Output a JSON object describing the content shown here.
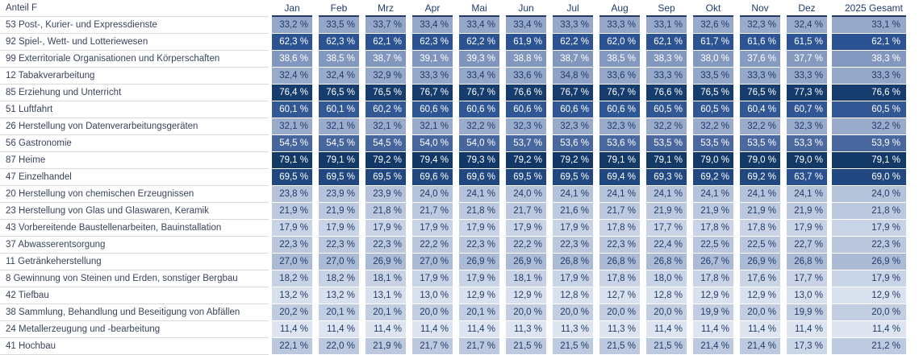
{
  "colors": {
    "header_text": "#1F3C6D",
    "header_underline": "#1F3864",
    "label_text": "#39445C",
    "row_separator": "#DADADA",
    "cell_text_dark": "#223C6B",
    "cell_text_light": "#FFFFFF",
    "white_text_threshold": 36.5,
    "scale_anchors": [
      [
        11,
        "#DFE6F1"
      ],
      [
        33,
        "#97A9CA"
      ],
      [
        54,
        "#49679F"
      ],
      [
        62,
        "#2B5393"
      ],
      [
        79.5,
        "#123866"
      ]
    ]
  },
  "chart_data": {
    "type": "heatmap",
    "title": "Anteil F",
    "corner_label": "Anteil F",
    "unit": "%",
    "value_format": "one decimal, German comma, suffix ' %'",
    "legend_position": "none",
    "color_scale": "light grayish blue (low) to dark navy (high)",
    "columns": [
      "Jan",
      "Feb",
      "Mrz",
      "Apr",
      "Mai",
      "Jun",
      "Jul",
      "Aug",
      "Sep",
      "Okt",
      "Nov",
      "Dez"
    ],
    "total_column": "2025 Gesamt",
    "rows": [
      {
        "label": "53 Post-, Kurier- und Expressdienste",
        "values": [
          33.2,
          33.5,
          33.7,
          33.4,
          33.4,
          33.4,
          33.3,
          33.3,
          33.1,
          32.6,
          32.3,
          32.4
        ],
        "total": 33.1
      },
      {
        "label": "92 Spiel-, Wett- und Lotteriewesen",
        "values": [
          62.3,
          62.3,
          62.1,
          62.3,
          62.2,
          61.9,
          62.2,
          62.0,
          62.1,
          61.7,
          61.6,
          61.5
        ],
        "total": 62.1
      },
      {
        "label": "99 Exterritoriale Organisationen und Körperschaften",
        "values": [
          38.6,
          38.5,
          38.7,
          39.1,
          39.3,
          38.8,
          38.7,
          38.5,
          38.3,
          38.0,
          37.6,
          37.7
        ],
        "total": 38.3
      },
      {
        "label": "12 Tabakverarbeitung",
        "values": [
          32.4,
          32.4,
          32.9,
          33.3,
          33.4,
          33.6,
          34.8,
          33.6,
          33.3,
          33.5,
          33.3,
          33.3
        ],
        "total": 33.3
      },
      {
        "label": "85 Erziehung und Unterricht",
        "values": [
          76.4,
          76.5,
          76.5,
          76.7,
          76.7,
          76.6,
          76.7,
          76.7,
          76.6,
          76.5,
          76.5,
          77.3
        ],
        "total": 76.6
      },
      {
        "label": "51 Luftfahrt",
        "values": [
          60.1,
          60.1,
          60.2,
          60.6,
          60.6,
          60.6,
          60.6,
          60.6,
          60.5,
          60.5,
          60.4,
          60.7
        ],
        "total": 60.5
      },
      {
        "label": "26 Herstellung von Datenverarbeitungsgeräten",
        "values": [
          32.1,
          32.1,
          32.1,
          32.1,
          32.2,
          32.3,
          32.3,
          32.3,
          32.2,
          32.2,
          32.2,
          32.3
        ],
        "total": 32.2
      },
      {
        "label": "56 Gastronomie",
        "values": [
          54.5,
          54.5,
          54.5,
          54.0,
          54.0,
          53.7,
          53.6,
          53.6,
          53.5,
          53.5,
          53.5,
          53.3
        ],
        "total": 53.9
      },
      {
        "label": "87 Heime",
        "values": [
          79.1,
          79.1,
          79.2,
          79.4,
          79.3,
          79.2,
          79.2,
          79.1,
          79.1,
          79.0,
          79.0,
          79.0
        ],
        "total": 79.1
      },
      {
        "label": "47 Einzelhandel",
        "values": [
          69.5,
          69.5,
          69.5,
          69.6,
          69.6,
          69.5,
          69.5,
          69.4,
          69.3,
          69.2,
          69.2,
          63.7
        ],
        "total": 69.0
      },
      {
        "label": "20 Herstellung von chemischen Erzeugnissen",
        "values": [
          23.8,
          23.9,
          23.9,
          24.0,
          24.1,
          24.0,
          24.1,
          24.1,
          24.1,
          24.1,
          24.1,
          24.1
        ],
        "total": 24.0
      },
      {
        "label": "23 Herstellung von Glas und Glaswaren, Keramik",
        "values": [
          21.9,
          21.9,
          21.8,
          21.7,
          21.8,
          21.7,
          21.6,
          21.7,
          21.9,
          21.9,
          21.9,
          21.9
        ],
        "total": 21.8
      },
      {
        "label": "43 Vorbereitende Baustellenarbeiten, Bauinstallation",
        "values": [
          17.9,
          17.9,
          17.9,
          17.9,
          17.9,
          17.9,
          17.9,
          17.8,
          17.7,
          17.8,
          17.8,
          17.9
        ],
        "total": 17.9
      },
      {
        "label": "37 Abwasserentsorgung",
        "values": [
          22.3,
          22.3,
          22.3,
          22.2,
          22.3,
          22.2,
          22.3,
          22.3,
          22.4,
          22.5,
          22.5,
          22.7
        ],
        "total": 22.3
      },
      {
        "label": "11 Getränkeherstellung",
        "values": [
          27.0,
          27.0,
          26.9,
          27.0,
          26.9,
          26.9,
          26.8,
          26.8,
          26.8,
          26.7,
          26.9,
          26.8
        ],
        "total": 26.9
      },
      {
        "label": "8 Gewinnung von Steinen und Erden, sonstiger Bergbau",
        "values": [
          18.2,
          18.2,
          18.1,
          17.9,
          17.9,
          18.1,
          17.9,
          17.8,
          18.0,
          17.8,
          17.6,
          17.7
        ],
        "total": 17.9
      },
      {
        "label": "42 Tiefbau",
        "values": [
          13.2,
          13.2,
          13.1,
          13.0,
          12.9,
          12.9,
          12.8,
          12.7,
          12.8,
          12.9,
          12.9,
          13.0
        ],
        "total": 12.9
      },
      {
        "label": "38 Sammlung, Behandlung und Beseitigung von Abfällen",
        "values": [
          20.2,
          20.1,
          20.1,
          20.0,
          20.1,
          20.0,
          20.0,
          20.0,
          20.0,
          19.9,
          20.0,
          19.9
        ],
        "total": 20.0
      },
      {
        "label": "24 Metallerzeugung und -bearbeitung",
        "values": [
          11.4,
          11.4,
          11.4,
          11.4,
          11.4,
          11.3,
          11.3,
          11.3,
          11.4,
          11.4,
          11.4,
          11.4
        ],
        "total": 11.4
      },
      {
        "label": "41 Hochbau",
        "values": [
          22.1,
          22.0,
          21.9,
          21.7,
          21.7,
          21.5,
          21.5,
          21.5,
          21.5,
          21.4,
          21.4,
          17.3
        ],
        "total": 21.2
      }
    ]
  }
}
